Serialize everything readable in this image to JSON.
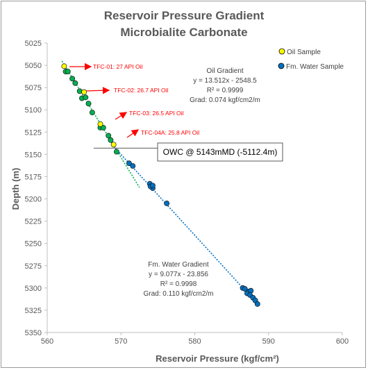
{
  "chart_data": {
    "type": "scatter",
    "title": "Reservoir Pressure Gradient",
    "subtitle": "Microbialite Carbonate",
    "xlabel": "Reservoir Pressure (kgf/cm²)",
    "ylabel": "Depth (m)",
    "xlim": [
      560,
      600
    ],
    "ylim": [
      5025,
      5350
    ],
    "y_inverted": true,
    "grid": false,
    "legend_position": "top-right",
    "x_ticks": [
      560,
      570,
      580,
      590,
      600
    ],
    "y_ticks": [
      5025,
      5050,
      5075,
      5100,
      5125,
      5150,
      5175,
      5200,
      5225,
      5250,
      5275,
      5300,
      5325,
      5350
    ],
    "colors": {
      "oil_sample": "#ffff00",
      "green_point": "#00b050",
      "water": "#0070c0",
      "oil_trend": "#00b050",
      "water_trend": "#0070c0",
      "arrow": "#ff0000"
    },
    "series": [
      {
        "name": "Oil Sample",
        "points": [
          [
            562.3,
            5051
          ],
          [
            565.0,
            5080
          ],
          [
            567.2,
            5116
          ],
          [
            569.0,
            5139
          ]
        ]
      },
      {
        "name": "",
        "points": [
          [
            562.5,
            5057
          ],
          [
            562.8,
            5057
          ],
          [
            563.4,
            5065
          ],
          [
            563.8,
            5070
          ],
          [
            564.4,
            5079
          ],
          [
            564.7,
            5087
          ],
          [
            565.2,
            5086
          ],
          [
            565.6,
            5093
          ],
          [
            566.1,
            5103
          ],
          [
            567.2,
            5120
          ],
          [
            567.6,
            5120
          ],
          [
            568.3,
            5129
          ],
          [
            568.6,
            5134
          ],
          [
            569.4,
            5147
          ]
        ]
      },
      {
        "name": "Fm. Water Sample",
        "points": [
          [
            571.1,
            5160
          ],
          [
            571.6,
            5163
          ],
          [
            573.9,
            5183
          ],
          [
            574.3,
            5188
          ],
          [
            574.0,
            5186
          ],
          [
            574.3,
            5185
          ],
          [
            576.2,
            5205
          ],
          [
            586.5,
            5300
          ],
          [
            586.8,
            5301
          ],
          [
            587.3,
            5304
          ],
          [
            587.1,
            5306
          ],
          [
            587.6,
            5303
          ],
          [
            587.5,
            5308
          ],
          [
            587.9,
            5311
          ],
          [
            588.2,
            5314
          ],
          [
            588.5,
            5318
          ]
        ]
      }
    ],
    "trendlines": [
      {
        "name": "Oil Gradient",
        "slope": 13.512,
        "intercept": -2548.5,
        "x_range": [
          562.0,
          572.5
        ]
      },
      {
        "name": "Fm. Water Gradient",
        "slope": 9.077,
        "intercept": -23.856,
        "x_range": [
          569.0,
          587.5
        ]
      }
    ],
    "owc_depth": 5143,
    "sample_labels": [
      {
        "text": "TFC-01: 27 API Oil",
        "x": 562.3,
        "y": 5051
      },
      {
        "text": "TFC-02: 26.7 API Oil",
        "x": 565.0,
        "y": 5080
      },
      {
        "text": "TFC-03: 26.5 API Oil",
        "x": 567.2,
        "y": 5116
      },
      {
        "text": "TFC-04A: 25.8 API Oil",
        "x": 569.0,
        "y": 5139
      }
    ],
    "annotations": {
      "oil": [
        "Oil Gradient",
        "y = 13.512x - 2548.5",
        "R² = 0.9999",
        "Grad: 0.074 kgf/cm2/m"
      ],
      "water": [
        "Fm. Water Gradient",
        "y = 9.077x - 23.856",
        "R² = 0.9998",
        "Grad: 0.110 kgf/cm2/m"
      ],
      "owc": "OWC @ 5143mMD (-5112.4m)"
    }
  }
}
